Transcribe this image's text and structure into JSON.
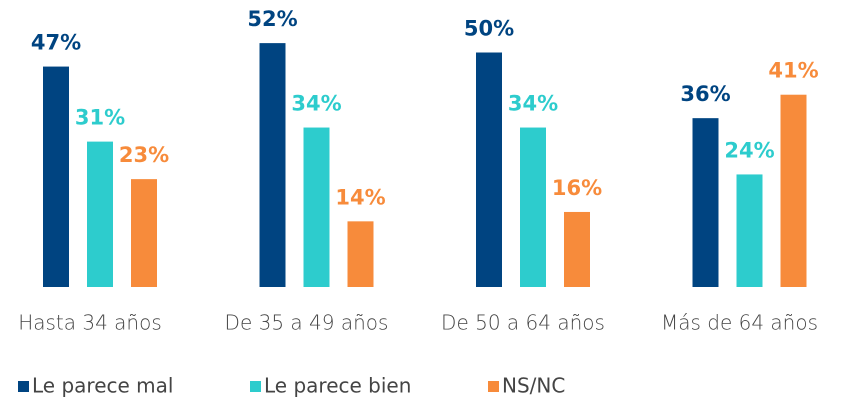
{
  "chart_data": {
    "type": "bar",
    "categories": [
      "Hasta 34 años",
      "De 35 a 49 años",
      "De 50 a 64 años",
      "Más de 64 años"
    ],
    "series": [
      {
        "name": "Le parece mal",
        "color": "#004481",
        "values": [
          47,
          52,
          50,
          36
        ],
        "value_labels": [
          "47%",
          "52%",
          "50%",
          "36%"
        ]
      },
      {
        "name": "Le parece bien",
        "color": "#2dcccd",
        "values": [
          31,
          34,
          34,
          24
        ],
        "value_labels": [
          "31%",
          "34%",
          "34%",
          "24%"
        ]
      },
      {
        "name": "NS/NC",
        "color": "#f78b3b",
        "values": [
          23,
          14,
          16,
          41
        ],
        "value_labels": [
          "23%",
          "14%",
          "16%",
          "41%"
        ]
      }
    ]
  }
}
